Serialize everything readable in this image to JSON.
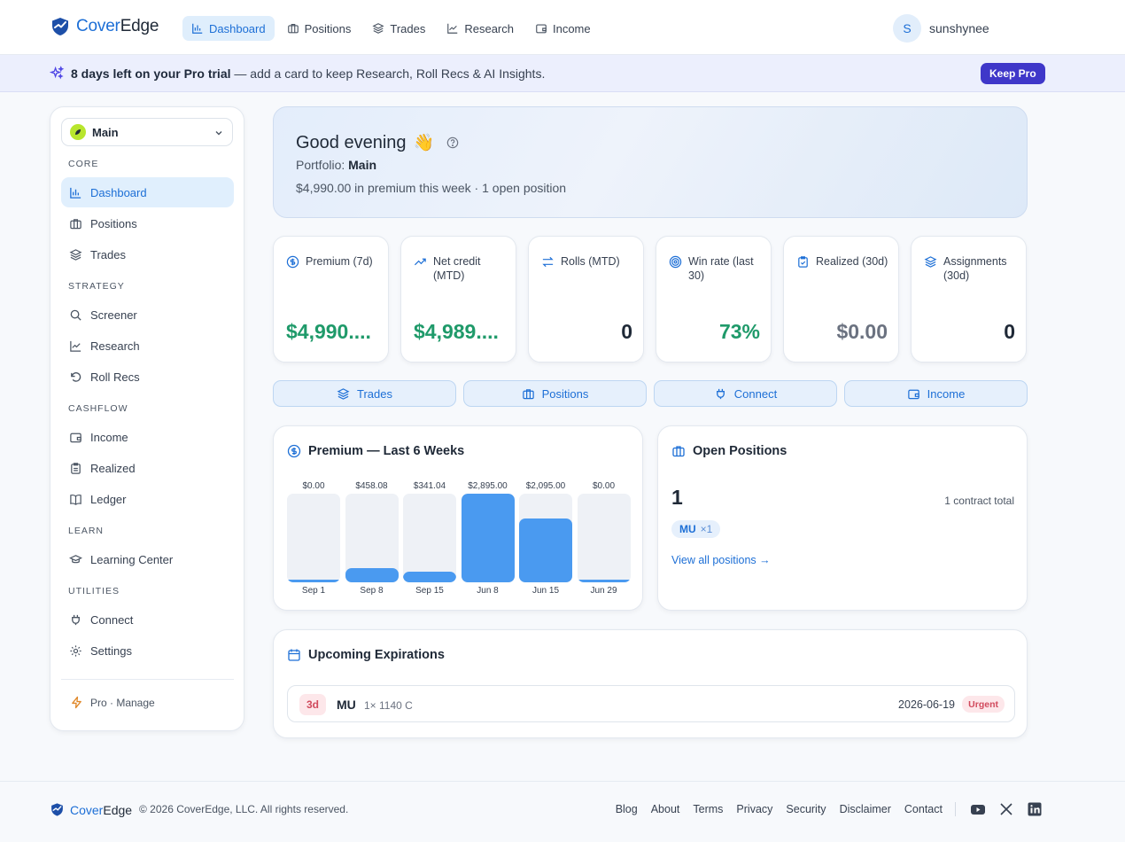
{
  "brand": {
    "name_part1": "Cover",
    "name_part2": "Edge"
  },
  "nav": {
    "items": [
      {
        "label": "Dashboard",
        "icon": "bar-chart-icon",
        "active": true
      },
      {
        "label": "Positions",
        "icon": "briefcase-icon"
      },
      {
        "label": "Trades",
        "icon": "layers-icon"
      },
      {
        "label": "Research",
        "icon": "line-chart-icon"
      },
      {
        "label": "Income",
        "icon": "wallet-icon"
      }
    ]
  },
  "user": {
    "initial": "S",
    "name": "sunshynee"
  },
  "banner": {
    "bold": "8 days left on your Pro trial",
    "rest": " — add a card to keep Research, Roll Recs & AI Insights.",
    "button": "Keep Pro"
  },
  "sidebar": {
    "portfolio": "Main",
    "sections": {
      "core": "CORE",
      "strategy": "STRATEGY",
      "cashflow": "CASHFLOW",
      "learn": "LEARN",
      "utilities": "UTILITIES"
    },
    "items": {
      "dashboard": "Dashboard",
      "positions": "Positions",
      "trades": "Trades",
      "screener": "Screener",
      "research": "Research",
      "roll_recs": "Roll Recs",
      "income": "Income",
      "realized": "Realized",
      "ledger": "Ledger",
      "learning_center": "Learning Center",
      "connect": "Connect",
      "settings": "Settings"
    },
    "pro_manage": "Pro · Manage"
  },
  "hero": {
    "greeting": "Good evening",
    "emoji": "👋",
    "portfolio_label": "Portfolio: ",
    "portfolio_name": "Main",
    "summary": "$4,990.00 in premium this week · 1 open position"
  },
  "stats": [
    {
      "label": "Premium (7d)",
      "value": "$4,990....",
      "icon": "dollar-circle-icon"
    },
    {
      "label": "Net credit (MTD)",
      "value": "$4,989....",
      "icon": "trend-up-icon"
    },
    {
      "label": "Rolls (MTD)",
      "value": "0",
      "icon": "arrows-swap-icon"
    },
    {
      "label": "Win rate (last 30)",
      "value": "73%",
      "icon": "target-icon"
    },
    {
      "label": "Realized (30d)",
      "value": "$0.00",
      "icon": "clipboard-icon"
    },
    {
      "label": "Assignments (30d)",
      "value": "0",
      "icon": "layers-icon"
    }
  ],
  "quick_actions": [
    {
      "label": "Trades",
      "icon": "layers-icon"
    },
    {
      "label": "Positions",
      "icon": "briefcase-icon"
    },
    {
      "label": "Connect",
      "icon": "plug-icon"
    },
    {
      "label": "Income",
      "icon": "wallet-icon"
    }
  ],
  "premium_chart": {
    "title": "Premium — Last 6 Weeks",
    "chart_data": {
      "type": "bar",
      "categories": [
        "Sep 1",
        "Sep 8",
        "Sep 15",
        "Jun 8",
        "Jun 15",
        "Jun 29"
      ],
      "values": [
        0.0,
        458.08,
        341.04,
        2895.0,
        2095.0,
        0.0
      ],
      "value_labels": [
        "$0.00",
        "$458.08",
        "$341.04",
        "$2,895.00",
        "$2,095.00",
        "$0.00"
      ],
      "ylim": [
        0,
        2895.0
      ],
      "grid": false
    }
  },
  "open_positions": {
    "title": "Open Positions",
    "count": "1",
    "total": "1 contract total",
    "chip_ticker": "MU",
    "chip_qty": "×1",
    "link": "View all positions →"
  },
  "expirations": {
    "title": "Upcoming Expirations",
    "rows": [
      {
        "days": "3d",
        "symbol": "MU",
        "detail": "1× 1140 C",
        "date": "2026-06-19",
        "badge": "Urgent"
      }
    ]
  },
  "footer": {
    "copyright": "© 2026 CoverEdge, LLC. All rights reserved.",
    "links": [
      "Blog",
      "About",
      "Terms",
      "Privacy",
      "Security",
      "Disclaimer",
      "Contact"
    ],
    "social": [
      "youtube-icon",
      "x-icon",
      "linkedin-icon"
    ]
  },
  "colors": {
    "accent": "#1d6fd6",
    "positive": "#1f9a6a",
    "bar": "#4a9af0",
    "urgent": "#d14a5d",
    "banner_button": "#3f37c9"
  }
}
